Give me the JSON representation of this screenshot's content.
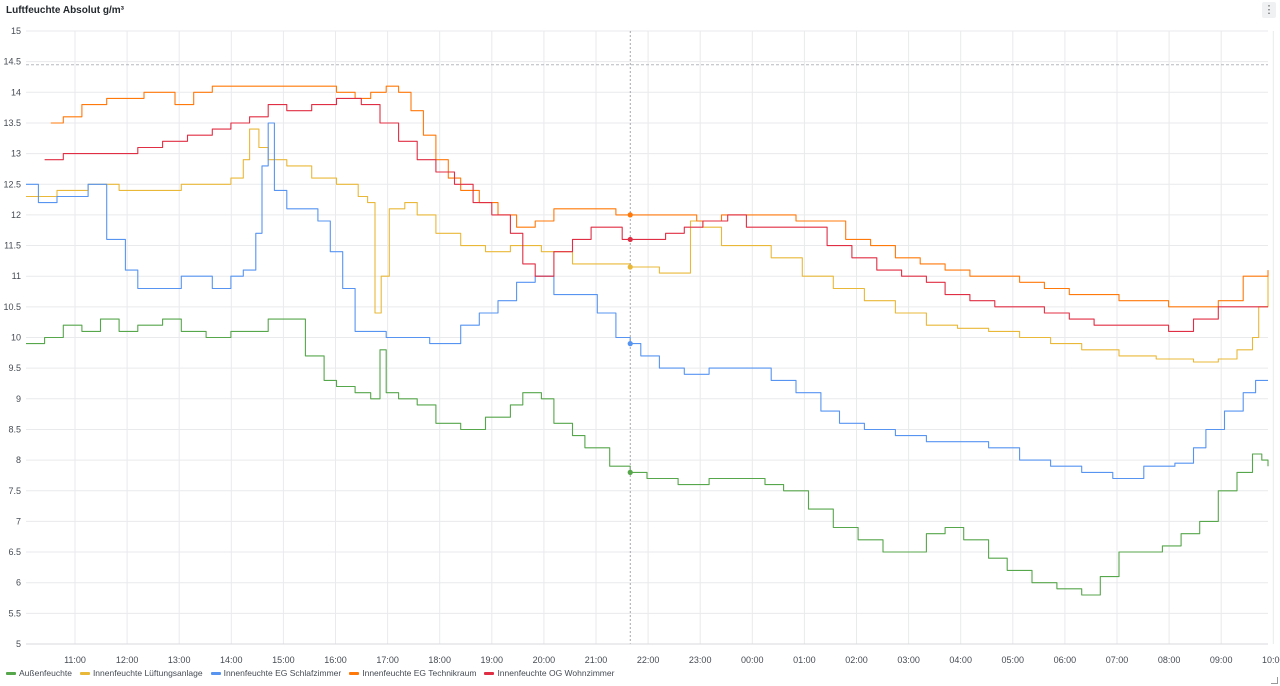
{
  "panel": {
    "title": "Luftfeuchte Absolut g/m³",
    "menu_glyph": "⋮"
  },
  "chart_data": {
    "type": "line",
    "title": "Luftfeuchte Absolut g/m³",
    "xlabel": "",
    "ylabel": "",
    "ylim": [
      5,
      15
    ],
    "xlim": [
      "10:00",
      "10:00"
    ],
    "y_ticks": [
      "5",
      "5.5",
      "6",
      "6.5",
      "7",
      "7.5",
      "8",
      "8.5",
      "9",
      "9.5",
      "10",
      "10.5",
      "11",
      "11.5",
      "12",
      "12.5",
      "13",
      "13.5",
      "14",
      "14.5",
      "15"
    ],
    "x_ticks": [
      "11:00",
      "12:00",
      "13:00",
      "14:00",
      "15:00",
      "16:00",
      "17:00",
      "18:00",
      "19:00",
      "20:00",
      "21:00",
      "22:00",
      "23:00",
      "00:00",
      "01:00",
      "02:00",
      "03:00",
      "04:00",
      "05:00",
      "06:00",
      "07:00",
      "08:00",
      "09:00",
      "10:00"
    ],
    "threshold": 14.45,
    "cursor_time": "21:44",
    "grid": true,
    "legend_position": "bottom-left",
    "series": [
      {
        "name": "Außenfeuchte",
        "color": "#56a64b",
        "hover_value": 7.8,
        "points": [
          [
            0,
            9.9
          ],
          [
            0.3,
            10.0
          ],
          [
            0.6,
            10.2
          ],
          [
            0.9,
            10.1
          ],
          [
            1.2,
            10.3
          ],
          [
            1.5,
            10.1
          ],
          [
            1.8,
            10.2
          ],
          [
            2.2,
            10.3
          ],
          [
            2.5,
            10.1
          ],
          [
            2.9,
            10.0
          ],
          [
            3.3,
            10.1
          ],
          [
            3.7,
            10.1
          ],
          [
            3.9,
            10.3
          ],
          [
            4.2,
            10.3
          ],
          [
            4.5,
            9.7
          ],
          [
            4.8,
            9.3
          ],
          [
            5.0,
            9.2
          ],
          [
            5.3,
            9.1
          ],
          [
            5.55,
            9.0
          ],
          [
            5.7,
            9.8
          ],
          [
            5.8,
            9.1
          ],
          [
            6.0,
            9.0
          ],
          [
            6.3,
            8.9
          ],
          [
            6.6,
            8.6
          ],
          [
            7.0,
            8.5
          ],
          [
            7.4,
            8.7
          ],
          [
            7.8,
            8.9
          ],
          [
            8.0,
            9.1
          ],
          [
            8.3,
            9.0
          ],
          [
            8.5,
            8.6
          ],
          [
            8.8,
            8.4
          ],
          [
            9.0,
            8.2
          ],
          [
            9.4,
            7.9
          ],
          [
            9.73,
            7.8
          ],
          [
            10.0,
            7.7
          ],
          [
            10.5,
            7.6
          ],
          [
            11.0,
            7.7
          ],
          [
            11.5,
            7.7
          ],
          [
            11.9,
            7.6
          ],
          [
            12.2,
            7.5
          ],
          [
            12.6,
            7.2
          ],
          [
            13.0,
            6.9
          ],
          [
            13.4,
            6.7
          ],
          [
            13.8,
            6.5
          ],
          [
            14.1,
            6.5
          ],
          [
            14.5,
            6.8
          ],
          [
            14.8,
            6.9
          ],
          [
            15.1,
            6.7
          ],
          [
            15.5,
            6.4
          ],
          [
            15.8,
            6.2
          ],
          [
            16.2,
            6.0
          ],
          [
            16.6,
            5.9
          ],
          [
            17.0,
            5.8
          ],
          [
            17.3,
            6.1
          ],
          [
            17.6,
            6.5
          ],
          [
            18.0,
            6.5
          ],
          [
            18.3,
            6.6
          ],
          [
            18.6,
            6.8
          ],
          [
            18.9,
            7.0
          ],
          [
            19.2,
            7.5
          ],
          [
            19.5,
            7.8
          ],
          [
            19.75,
            8.1
          ],
          [
            19.9,
            8.0
          ],
          [
            20.0,
            7.9
          ]
        ]
      },
      {
        "name": "Innenfeuchte Lüftungsanlage",
        "color": "#eab839",
        "hover_value": 11.15,
        "points": [
          [
            0,
            12.3
          ],
          [
            0.5,
            12.4
          ],
          [
            1.0,
            12.5
          ],
          [
            1.5,
            12.4
          ],
          [
            2.0,
            12.4
          ],
          [
            2.5,
            12.5
          ],
          [
            3.0,
            12.5
          ],
          [
            3.3,
            12.6
          ],
          [
            3.5,
            12.9
          ],
          [
            3.6,
            13.4
          ],
          [
            3.75,
            13.1
          ],
          [
            3.9,
            12.9
          ],
          [
            4.2,
            12.8
          ],
          [
            4.6,
            12.6
          ],
          [
            5.0,
            12.5
          ],
          [
            5.35,
            12.3
          ],
          [
            5.5,
            12.2
          ],
          [
            5.62,
            10.4
          ],
          [
            5.72,
            11.0
          ],
          [
            5.85,
            12.1
          ],
          [
            6.1,
            12.2
          ],
          [
            6.3,
            12.0
          ],
          [
            6.6,
            11.7
          ],
          [
            7.0,
            11.5
          ],
          [
            7.4,
            11.4
          ],
          [
            7.8,
            11.5
          ],
          [
            8.3,
            11.4
          ],
          [
            8.8,
            11.2
          ],
          [
            9.2,
            11.2
          ],
          [
            9.73,
            11.15
          ],
          [
            10.2,
            11.05
          ],
          [
            10.5,
            11.05
          ],
          [
            10.7,
            11.9
          ],
          [
            10.9,
            11.8
          ],
          [
            11.2,
            11.5
          ],
          [
            11.6,
            11.5
          ],
          [
            12.0,
            11.3
          ],
          [
            12.5,
            11.0
          ],
          [
            13.0,
            10.8
          ],
          [
            13.5,
            10.6
          ],
          [
            14.0,
            10.4
          ],
          [
            14.5,
            10.2
          ],
          [
            15.0,
            10.15
          ],
          [
            15.5,
            10.1
          ],
          [
            16.0,
            10.0
          ],
          [
            16.5,
            9.9
          ],
          [
            17.0,
            9.8
          ],
          [
            17.6,
            9.7
          ],
          [
            18.2,
            9.65
          ],
          [
            18.8,
            9.6
          ],
          [
            19.2,
            9.65
          ],
          [
            19.5,
            9.8
          ],
          [
            19.75,
            10.0
          ],
          [
            19.85,
            10.5
          ],
          [
            20.0,
            11.0
          ]
        ]
      },
      {
        "name": "Innenfeuchte EG Schlafzimmer",
        "color": "#5794f2",
        "hover_value": 9.9,
        "points": [
          [
            0,
            12.5
          ],
          [
            0.2,
            12.2
          ],
          [
            0.5,
            12.3
          ],
          [
            1.0,
            12.5
          ],
          [
            1.3,
            11.6
          ],
          [
            1.6,
            11.1
          ],
          [
            1.8,
            10.8
          ],
          [
            2.3,
            10.8
          ],
          [
            2.5,
            11.0
          ],
          [
            2.8,
            11.0
          ],
          [
            3.0,
            10.8
          ],
          [
            3.3,
            11.0
          ],
          [
            3.5,
            11.1
          ],
          [
            3.7,
            11.7
          ],
          [
            3.8,
            12.8
          ],
          [
            3.9,
            13.5
          ],
          [
            4.0,
            12.4
          ],
          [
            4.2,
            12.1
          ],
          [
            4.5,
            12.1
          ],
          [
            4.7,
            11.9
          ],
          [
            4.9,
            11.4
          ],
          [
            5.1,
            10.8
          ],
          [
            5.3,
            10.1
          ],
          [
            5.6,
            10.1
          ],
          [
            5.8,
            10.0
          ],
          [
            6.1,
            10.0
          ],
          [
            6.5,
            9.9
          ],
          [
            6.8,
            9.9
          ],
          [
            7.0,
            10.2
          ],
          [
            7.3,
            10.4
          ],
          [
            7.6,
            10.6
          ],
          [
            7.9,
            10.9
          ],
          [
            8.2,
            11.0
          ],
          [
            8.5,
            10.7
          ],
          [
            8.8,
            10.7
          ],
          [
            9.2,
            10.4
          ],
          [
            9.5,
            10.0
          ],
          [
            9.73,
            9.9
          ],
          [
            9.9,
            9.7
          ],
          [
            10.2,
            9.5
          ],
          [
            10.6,
            9.4
          ],
          [
            11.0,
            9.5
          ],
          [
            11.5,
            9.5
          ],
          [
            12.0,
            9.3
          ],
          [
            12.4,
            9.1
          ],
          [
            12.8,
            8.8
          ],
          [
            13.1,
            8.6
          ],
          [
            13.5,
            8.5
          ],
          [
            14.0,
            8.4
          ],
          [
            14.5,
            8.3
          ],
          [
            15.0,
            8.3
          ],
          [
            15.5,
            8.2
          ],
          [
            16.0,
            8.0
          ],
          [
            16.5,
            7.9
          ],
          [
            17.0,
            7.8
          ],
          [
            17.5,
            7.7
          ],
          [
            18.0,
            7.9
          ],
          [
            18.5,
            7.95
          ],
          [
            18.8,
            8.2
          ],
          [
            19.0,
            8.5
          ],
          [
            19.3,
            8.8
          ],
          [
            19.6,
            9.1
          ],
          [
            19.8,
            9.3
          ],
          [
            20.0,
            9.3
          ]
        ]
      },
      {
        "name": "Innenfeuchte EG Technikraum",
        "color": "#ff780a",
        "hover_value": 12.0,
        "points": [
          [
            0.4,
            13.5
          ],
          [
            0.6,
            13.6
          ],
          [
            0.9,
            13.8
          ],
          [
            1.3,
            13.9
          ],
          [
            1.6,
            13.9
          ],
          [
            1.9,
            14.0
          ],
          [
            2.2,
            14.0
          ],
          [
            2.4,
            13.8
          ],
          [
            2.7,
            14.0
          ],
          [
            3.0,
            14.1
          ],
          [
            3.5,
            14.1
          ],
          [
            4.0,
            14.1
          ],
          [
            4.5,
            14.1
          ],
          [
            5.0,
            14.0
          ],
          [
            5.3,
            13.9
          ],
          [
            5.55,
            14.0
          ],
          [
            5.8,
            14.1
          ],
          [
            6.0,
            14.0
          ],
          [
            6.2,
            13.7
          ],
          [
            6.4,
            13.3
          ],
          [
            6.6,
            12.9
          ],
          [
            6.8,
            12.6
          ],
          [
            7.0,
            12.4
          ],
          [
            7.3,
            12.2
          ],
          [
            7.6,
            12.0
          ],
          [
            7.9,
            11.8
          ],
          [
            8.2,
            11.9
          ],
          [
            8.5,
            12.1
          ],
          [
            8.8,
            12.1
          ],
          [
            9.2,
            12.1
          ],
          [
            9.5,
            12.0
          ],
          [
            9.73,
            12.0
          ],
          [
            10.0,
            12.0
          ],
          [
            10.4,
            12.0
          ],
          [
            10.8,
            11.9
          ],
          [
            11.2,
            12.0
          ],
          [
            11.6,
            12.0
          ],
          [
            12.0,
            12.0
          ],
          [
            12.4,
            11.9
          ],
          [
            12.8,
            11.9
          ],
          [
            13.2,
            11.6
          ],
          [
            13.6,
            11.5
          ],
          [
            14.0,
            11.3
          ],
          [
            14.4,
            11.2
          ],
          [
            14.8,
            11.1
          ],
          [
            15.2,
            11.0
          ],
          [
            15.6,
            11.0
          ],
          [
            16.0,
            10.9
          ],
          [
            16.4,
            10.8
          ],
          [
            16.8,
            10.7
          ],
          [
            17.2,
            10.7
          ],
          [
            17.6,
            10.6
          ],
          [
            18.0,
            10.6
          ],
          [
            18.4,
            10.5
          ],
          [
            18.8,
            10.5
          ],
          [
            19.2,
            10.6
          ],
          [
            19.6,
            11.0
          ],
          [
            20.0,
            11.1
          ]
        ]
      },
      {
        "name": "Innenfeuchte OG Wohnzimmer",
        "color": "#e02f44",
        "hover_value": 11.6,
        "points": [
          [
            0.3,
            12.9
          ],
          [
            0.6,
            13.0
          ],
          [
            1.0,
            13.0
          ],
          [
            1.5,
            13.0
          ],
          [
            1.8,
            13.1
          ],
          [
            2.2,
            13.2
          ],
          [
            2.6,
            13.3
          ],
          [
            3.0,
            13.4
          ],
          [
            3.3,
            13.5
          ],
          [
            3.6,
            13.6
          ],
          [
            3.9,
            13.8
          ],
          [
            4.2,
            13.7
          ],
          [
            4.6,
            13.8
          ],
          [
            5.0,
            13.9
          ],
          [
            5.4,
            13.8
          ],
          [
            5.7,
            13.5
          ],
          [
            6.0,
            13.2
          ],
          [
            6.3,
            12.9
          ],
          [
            6.6,
            12.7
          ],
          [
            6.9,
            12.5
          ],
          [
            7.2,
            12.2
          ],
          [
            7.5,
            12.0
          ],
          [
            7.8,
            11.7
          ],
          [
            8.0,
            11.2
          ],
          [
            8.2,
            11.0
          ],
          [
            8.5,
            11.4
          ],
          [
            8.8,
            11.6
          ],
          [
            9.1,
            11.8
          ],
          [
            9.4,
            11.8
          ],
          [
            9.6,
            11.6
          ],
          [
            9.73,
            11.6
          ],
          [
            10.0,
            11.6
          ],
          [
            10.3,
            11.7
          ],
          [
            10.6,
            11.8
          ],
          [
            10.9,
            11.9
          ],
          [
            11.3,
            12.0
          ],
          [
            11.6,
            11.8
          ],
          [
            12.0,
            11.8
          ],
          [
            12.5,
            11.8
          ],
          [
            12.9,
            11.5
          ],
          [
            13.3,
            11.3
          ],
          [
            13.7,
            11.1
          ],
          [
            14.1,
            11.0
          ],
          [
            14.5,
            10.9
          ],
          [
            14.8,
            10.7
          ],
          [
            15.2,
            10.6
          ],
          [
            15.6,
            10.5
          ],
          [
            16.0,
            10.5
          ],
          [
            16.4,
            10.4
          ],
          [
            16.8,
            10.3
          ],
          [
            17.2,
            10.2
          ],
          [
            17.6,
            10.2
          ],
          [
            18.0,
            10.2
          ],
          [
            18.4,
            10.1
          ],
          [
            18.8,
            10.3
          ],
          [
            19.2,
            10.5
          ],
          [
            19.6,
            10.5
          ],
          [
            20.0,
            10.5
          ]
        ]
      }
    ]
  }
}
